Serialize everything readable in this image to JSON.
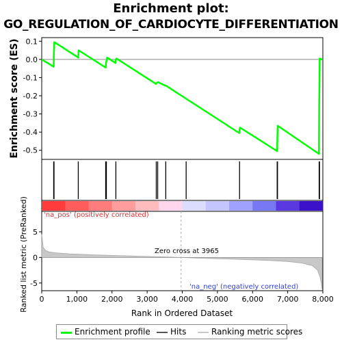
{
  "title_line1": "Enrichment plot:",
  "title_line2": "GO_REGULATION_OF_CARDIOCYTE_DIFFERENTIATION",
  "chart_data": {
    "type": "line",
    "x_axis": {
      "label": "Rank in Ordered Dataset",
      "range": [
        0,
        8000
      ],
      "ticks": [
        0,
        1000,
        2000,
        3000,
        4000,
        5000,
        6000,
        7000,
        8000
      ],
      "tick_labels": [
        "0",
        "1,000",
        "2,000",
        "3,000",
        "4,000",
        "5,000",
        "6,000",
        "7,000",
        "8,000"
      ]
    },
    "enrichment": {
      "ylabel": "Enrichment score (ES)",
      "ylim": [
        -0.55,
        0.12
      ],
      "yticks": [
        0.1,
        0.0,
        -0.1,
        -0.2,
        -0.3,
        -0.4,
        -0.5
      ],
      "ytick_labels": [
        "0.1",
        "0.0",
        "-0.1",
        "-0.2",
        "-0.3",
        "-0.4",
        "-0.5"
      ],
      "color": "#00ff00",
      "x": [
        0,
        340,
        345,
        360,
        1040,
        1050,
        1820,
        1830,
        1860,
        2100,
        2110,
        2130,
        3250,
        3270,
        3310,
        3520,
        3540,
        4100,
        5620,
        5640,
        6700,
        6705,
        6715,
        7890,
        7895,
        7910,
        7980
      ],
      "y": [
        0.0,
        -0.04,
        0.03,
        0.095,
        0.01,
        0.05,
        -0.045,
        -0.02,
        0.01,
        -0.02,
        0.0,
        0.005,
        -0.135,
        -0.13,
        -0.125,
        -0.145,
        -0.145,
        -0.215,
        -0.405,
        -0.375,
        -0.505,
        -0.44,
        -0.365,
        -0.52,
        -0.265,
        0.005,
        0.0
      ]
    },
    "hits": {
      "positions": [
        340,
        350,
        1040,
        1820,
        1840,
        2110,
        3260,
        3300,
        3530,
        4110,
        5630,
        6700,
        6710,
        7895,
        7905
      ]
    },
    "heatmap_bar": {
      "colors": [
        "#ff3b3b",
        "#ff5c5c",
        "#ff7c7c",
        "#ff9c9c",
        "#ffbcbc",
        "#ffd6ec",
        "#dcdcff",
        "#c4c4ff",
        "#a0a0ff",
        "#7878f4",
        "#5a38e0",
        "#3a10c8"
      ],
      "labels": {
        "pos": "'na_pos' (positively correlated)",
        "neg": "'na_neg' (negatively correlated)"
      }
    },
    "ranked_metric": {
      "ylabel": "Ranked list metric (PreRanked)",
      "ylim": [
        -6.5,
        9
      ],
      "yticks": [
        5,
        0,
        -5
      ],
      "ytick_labels": [
        "5",
        "0",
        "-5"
      ],
      "zero_cross_label": "Zero cross at 3965",
      "zero_cross": 3965,
      "x": [
        0,
        40,
        100,
        200,
        400,
        800,
        1500,
        2500,
        3500,
        3965,
        4500,
        5500,
        6500,
        7000,
        7400,
        7700,
        7850,
        7920,
        7960,
        7980
      ],
      "y": [
        4.5,
        2.0,
        1.4,
        1.1,
        0.9,
        0.7,
        0.5,
        0.3,
        0.1,
        0.0,
        -0.15,
        -0.35,
        -0.6,
        -0.8,
        -1.1,
        -1.6,
        -2.5,
        -3.8,
        -5.2,
        -6.3
      ]
    },
    "legend": {
      "items": [
        {
          "label": "Enrichment profile",
          "color": "#00ff00"
        },
        {
          "label": "Hits",
          "color": "#555555"
        },
        {
          "label": "Ranking metric scores",
          "color": "#c8c8c8"
        }
      ]
    }
  }
}
